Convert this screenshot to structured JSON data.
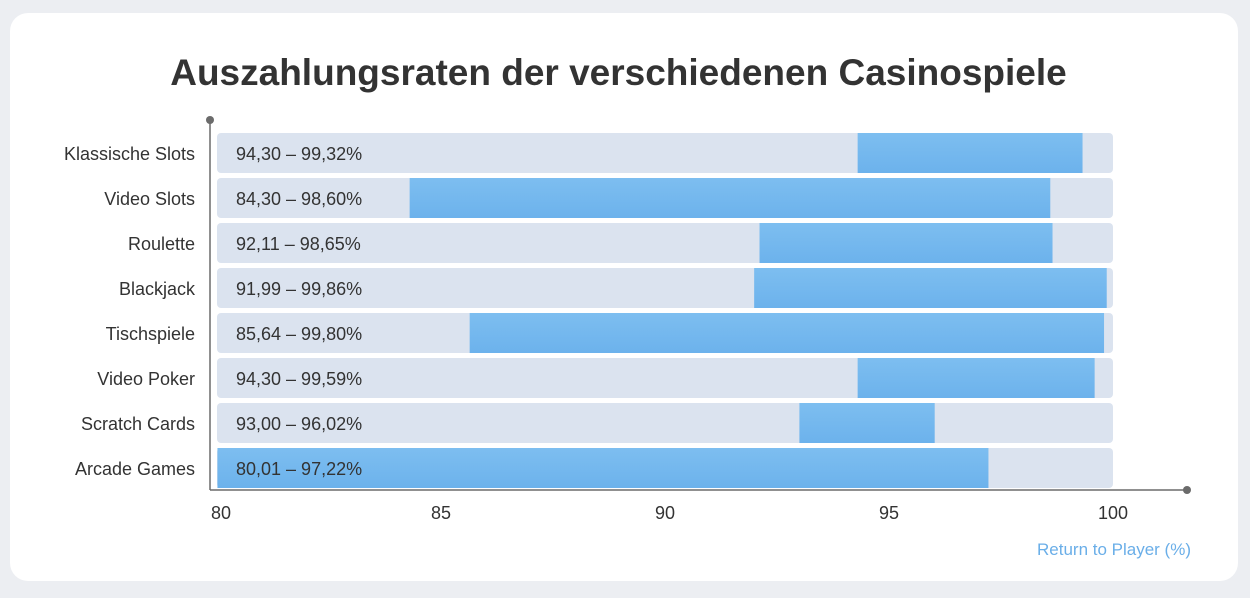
{
  "chart_data": {
    "type": "bar",
    "orientation": "horizontal",
    "title": "Auszahlungsraten der verschiedenen Casinospiele",
    "xlabel": "Return to Player (%)",
    "ylabel": "",
    "xlim": [
      80,
      100
    ],
    "xticks": [
      80,
      85,
      90,
      95,
      100
    ],
    "grid": false,
    "categories": [
      "Klassische Slots",
      "Video Slots",
      "Roulette",
      "Blackjack",
      "Tischspiele",
      "Video Poker",
      "Scratch Cards",
      "Arcade Games"
    ],
    "ranges": [
      {
        "min": 94.3,
        "max": 99.32,
        "label": "94,30 – 99,32%"
      },
      {
        "min": 84.3,
        "max": 98.6,
        "label": "84,30 – 98,60%"
      },
      {
        "min": 92.11,
        "max": 98.65,
        "label": "92,11 – 98,65%"
      },
      {
        "min": 91.99,
        "max": 99.86,
        "label": "91,99 – 99,86%"
      },
      {
        "min": 85.64,
        "max": 99.8,
        "label": "85,64 – 99,80%"
      },
      {
        "min": 94.3,
        "max": 99.59,
        "label": "94,30 – 99,59%"
      },
      {
        "min": 93.0,
        "max": 96.02,
        "label": "93,00 – 96,02%"
      },
      {
        "min": 80.01,
        "max": 97.22,
        "label": "80,01 – 97,22%"
      }
    ],
    "colors": {
      "bar": "#6cb2ec",
      "bar_light": "#7dbef0",
      "track": "#dbe3ef",
      "axis": "#6b6b6b",
      "text": "#333333",
      "accent": "#6aaee8"
    }
  }
}
